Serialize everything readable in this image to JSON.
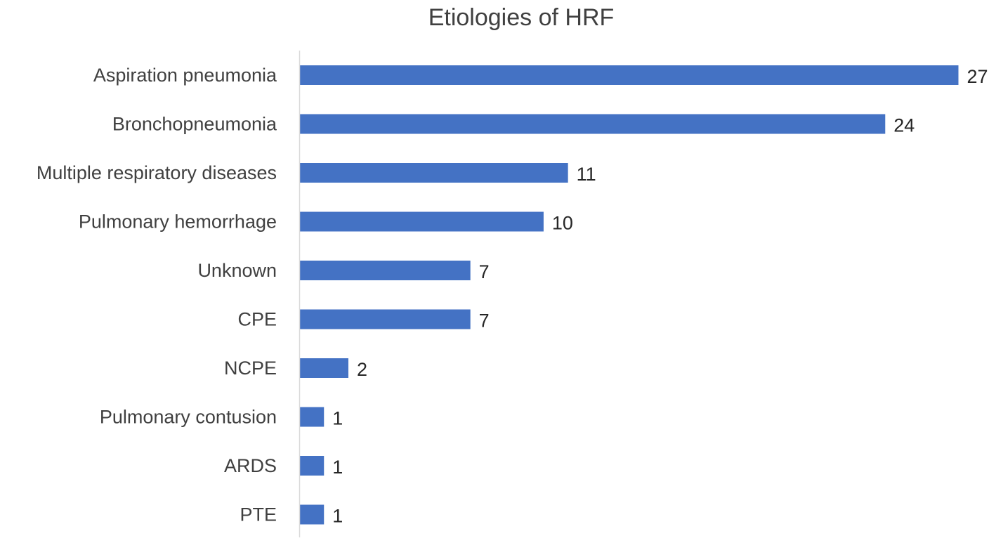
{
  "chart_data": {
    "type": "bar",
    "orientation": "horizontal",
    "title": "Etiologies of HRF",
    "categories": [
      "Aspiration pneumonia",
      "Bronchopneumonia",
      "Multiple respiratory diseases",
      "Pulmonary hemorrhage",
      "Unknown",
      "CPE",
      "NCPE",
      "Pulmonary contusion",
      "ARDS",
      "PTE"
    ],
    "values": [
      27,
      24,
      11,
      10,
      7,
      7,
      2,
      1,
      1,
      1
    ],
    "xlim": [
      0,
      27
    ],
    "grid": false,
    "legend": "none",
    "data_labels": true,
    "bar_color": "#4472C4",
    "axis_color": "#D9D9D9"
  }
}
